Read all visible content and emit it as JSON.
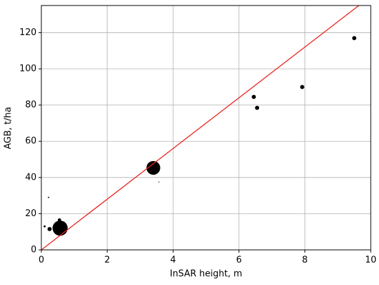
{
  "chart_data": {
    "type": "scatter",
    "x_label": "InSAR height, m",
    "y_label": "AGB, t/ha",
    "xlim": [
      0,
      10
    ],
    "ylim": [
      0,
      135
    ],
    "xticks": [
      0,
      2,
      4,
      6,
      8,
      10
    ],
    "yticks": [
      0,
      20,
      40,
      60,
      80,
      100,
      120
    ],
    "grid": true,
    "series": [
      {
        "type": "scatter",
        "color": "#000000",
        "x": [
          0.1,
          0.22,
          0.25,
          0.55,
          0.57,
          3.4,
          3.57,
          6.45,
          6.55,
          7.92,
          9.5
        ],
        "values": [
          13,
          29,
          11.5,
          16.5,
          12,
          45.3,
          37.5,
          84.5,
          78.5,
          90,
          117
        ],
        "sizes": [
          1.5,
          1,
          3,
          2.5,
          11,
          10,
          0.7,
          3,
          3,
          3,
          3
        ]
      },
      {
        "type": "line",
        "color": "#e8221c",
        "x": [
          0,
          9.64
        ],
        "values": [
          0,
          135
        ]
      }
    ]
  }
}
